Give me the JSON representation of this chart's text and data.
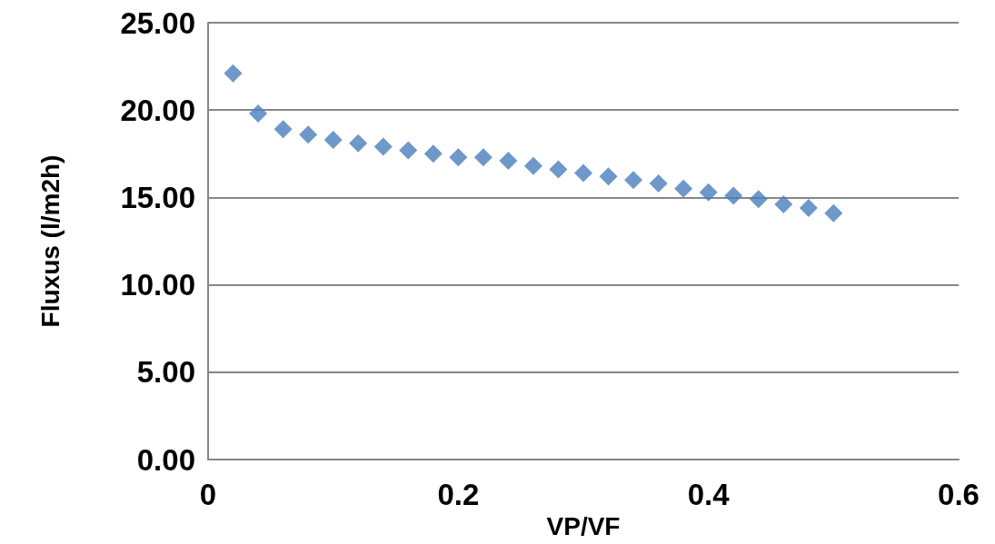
{
  "chart_data": {
    "type": "scatter",
    "xlabel": "VP/VF",
    "ylabel": "Fluxus (l/m2h)",
    "x": [
      0.02,
      0.04,
      0.06,
      0.08,
      0.1,
      0.12,
      0.14,
      0.16,
      0.18,
      0.2,
      0.22,
      0.24,
      0.26,
      0.28,
      0.3,
      0.32,
      0.34,
      0.36,
      0.38,
      0.4,
      0.42,
      0.44,
      0.46,
      0.48,
      0.5
    ],
    "series": [
      {
        "color": "#4a7ebb",
        "values": [
          22.1,
          19.8,
          18.9,
          18.6,
          18.3,
          18.1,
          17.9,
          17.7,
          17.5,
          17.3,
          17.3,
          17.1,
          16.8,
          16.6,
          16.4,
          16.2,
          16.0,
          15.8,
          15.5,
          15.3,
          15.1,
          14.9,
          14.6,
          14.4,
          14.1
        ]
      }
    ],
    "xlim": [
      0,
      0.6
    ],
    "xticks": [
      0,
      0.2,
      0.4,
      0.6
    ],
    "ylim": [
      0,
      25
    ],
    "yticks": [
      {
        "value": 0,
        "label": "0.00"
      },
      {
        "value": 5,
        "label": "5.00"
      },
      {
        "value": 10,
        "label": "10.00"
      },
      {
        "value": 15,
        "label": "15.00"
      },
      {
        "value": 20,
        "label": "20.00"
      },
      {
        "value": 25,
        "label": "25.00"
      }
    ],
    "grid": "y",
    "marker": "diamond"
  }
}
